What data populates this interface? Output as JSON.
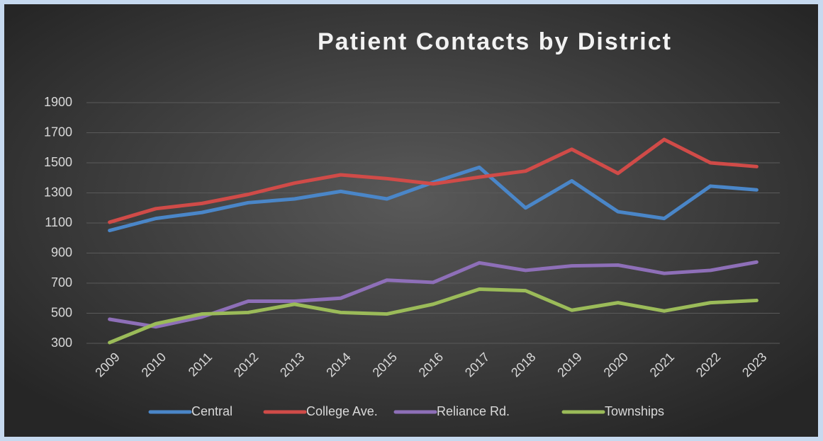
{
  "chart_data": {
    "type": "line",
    "title": "Patient Contacts by District",
    "categories": [
      "2009",
      "2010",
      "2011",
      "2012",
      "2013",
      "2014",
      "2015",
      "2016",
      "2017",
      "2018",
      "2019",
      "2020",
      "2021",
      "2022",
      "2023"
    ],
    "series": [
      {
        "name": "Central",
        "color": "#4a86c8",
        "values": [
          1050,
          1130,
          1170,
          1235,
          1260,
          1310,
          1260,
          1370,
          1470,
          1200,
          1380,
          1175,
          1130,
          1345,
          1320
        ]
      },
      {
        "name": "College Ave.",
        "color": "#d04b48",
        "values": [
          1105,
          1195,
          1230,
          1290,
          1365,
          1420,
          1395,
          1360,
          1405,
          1445,
          1590,
          1430,
          1655,
          1500,
          1475
        ]
      },
      {
        "name": "Reliance Rd.",
        "color": "#8e6fb8",
        "values": [
          460,
          410,
          475,
          580,
          580,
          600,
          720,
          705,
          835,
          785,
          815,
          820,
          765,
          785,
          840
        ]
      },
      {
        "name": "Townships",
        "color": "#9bbb59",
        "values": [
          305,
          430,
          495,
          505,
          560,
          505,
          495,
          560,
          660,
          650,
          520,
          570,
          515,
          570,
          585
        ]
      }
    ],
    "ylim": [
      300,
      1900
    ],
    "yticks": [
      300,
      500,
      700,
      900,
      1100,
      1300,
      1500,
      1700,
      1900
    ],
    "grid": true,
    "legend": "bottom"
  }
}
